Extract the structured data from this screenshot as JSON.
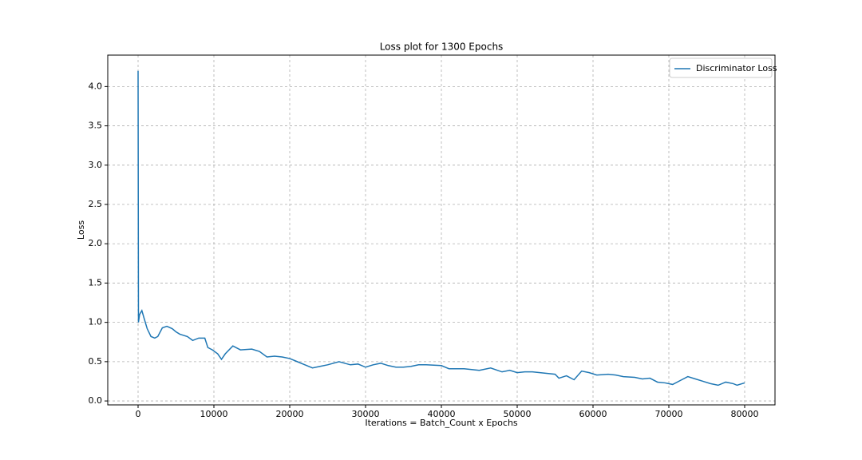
{
  "chart_data": {
    "type": "line",
    "title": "Loss plot for 1300 Epochs",
    "xlabel": "Iterations = Batch_Count x Epochs",
    "ylabel": "Loss",
    "x": [
      0,
      50,
      200,
      500,
      800,
      1200,
      1700,
      2200,
      2600,
      3200,
      3800,
      4500,
      5000,
      5500,
      6500,
      7200,
      8000,
      8800,
      9200,
      9800,
      10500,
      11000,
      11500,
      12500,
      13500,
      15000,
      16000,
      17000,
      18000,
      19000,
      20000,
      21000,
      22000,
      23000,
      24000,
      25000,
      26500,
      28000,
      29000,
      30000,
      31000,
      32000,
      33000,
      34000,
      35000,
      36000,
      37000,
      38000,
      40000,
      41000,
      43000,
      45000,
      46500,
      48000,
      49000,
      50000,
      51000,
      52000,
      54000,
      55000,
      55500,
      56500,
      57500,
      58500,
      59500,
      60500,
      62000,
      63000,
      64000,
      65500,
      66500,
      67500,
      68500,
      69500,
      70500,
      71500,
      72500,
      73500,
      74500,
      75500,
      76500,
      77500,
      78500,
      79000,
      80000
    ],
    "series": [
      {
        "name": "Discriminator Loss",
        "color": "#1f77b4",
        "values": [
          4.2,
          1.0,
          1.1,
          1.15,
          1.05,
          0.92,
          0.82,
          0.8,
          0.82,
          0.93,
          0.95,
          0.92,
          0.88,
          0.85,
          0.82,
          0.77,
          0.8,
          0.8,
          0.68,
          0.65,
          0.6,
          0.53,
          0.6,
          0.7,
          0.65,
          0.66,
          0.63,
          0.56,
          0.57,
          0.56,
          0.54,
          0.5,
          0.46,
          0.42,
          0.44,
          0.46,
          0.5,
          0.46,
          0.47,
          0.43,
          0.46,
          0.48,
          0.45,
          0.43,
          0.43,
          0.44,
          0.46,
          0.46,
          0.45,
          0.41,
          0.41,
          0.39,
          0.42,
          0.37,
          0.39,
          0.36,
          0.37,
          0.37,
          0.35,
          0.34,
          0.29,
          0.32,
          0.27,
          0.38,
          0.36,
          0.33,
          0.34,
          0.33,
          0.31,
          0.3,
          0.28,
          0.29,
          0.24,
          0.23,
          0.21,
          0.26,
          0.31,
          0.28,
          0.25,
          0.22,
          0.2,
          0.24,
          0.22,
          0.2,
          0.23
        ]
      }
    ],
    "xlim": [
      -4000,
      84000
    ],
    "ylim": [
      -0.05,
      4.4
    ],
    "xticks": [
      0,
      10000,
      20000,
      30000,
      40000,
      50000,
      60000,
      70000,
      80000
    ],
    "yticks": [
      {
        "value": 0,
        "label": "0.0"
      },
      0.5,
      {
        "value": 1,
        "label": "1.0"
      },
      1.5,
      {
        "value": 2,
        "label": "2.0"
      },
      2.5,
      {
        "value": 3,
        "label": "3.0"
      },
      3.5,
      {
        "value": 4,
        "label": "4.0"
      }
    ],
    "grid": true,
    "legend": "upper right"
  }
}
